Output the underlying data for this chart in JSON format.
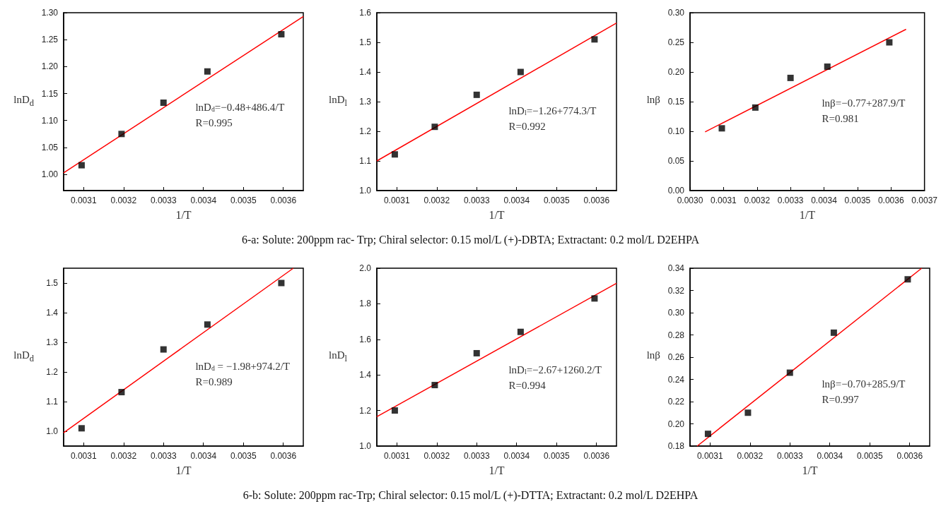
{
  "chart_data": [
    {
      "type": "scatter",
      "xlabel": "1/T",
      "ylabel": "lnD$_{d}$",
      "marker": "square",
      "x": [
        0.003095,
        0.003195,
        0.0033,
        0.00341,
        0.003595
      ],
      "xlim": [
        0.00305,
        0.00365
      ],
      "xticks": [
        0.0031,
        0.0032,
        0.0033,
        0.0034,
        0.0035,
        0.0036
      ],
      "ylim": [
        0.97,
        1.3
      ],
      "yticks": [
        {
          "value": 1.0,
          "label": "1.00"
        },
        1.05,
        {
          "value": 1.1,
          "label": "1.10"
        },
        1.15,
        {
          "value": 1.2,
          "label": "1.20"
        },
        1.25,
        {
          "value": 1.3,
          "label": "1.30"
        }
      ],
      "series": [
        {
          "type": "scatter",
          "color": "#000000",
          "values": [
            1.017,
            1.075,
            1.133,
            1.191,
            1.26
          ]
        },
        {
          "type": "line",
          "marker": "none",
          "color": "#ff0000",
          "x": [
            0.00305,
            0.00365
          ],
          "values": [
            1.003,
            1.293
          ]
        }
      ],
      "annotations": [
        "lnD$_{d}$=−0.48+486.4/T",
        "R=0.995"
      ]
    },
    {
      "type": "scatter",
      "xlabel": "1/T",
      "ylabel": "lnD$_{l}$",
      "marker": "square",
      "x": [
        0.003095,
        0.003195,
        0.0033,
        0.00341,
        0.003595
      ],
      "xlim": [
        0.00305,
        0.00365
      ],
      "xticks": [
        0.0031,
        0.0032,
        0.0033,
        0.0034,
        0.0035,
        0.0036
      ],
      "ylim": [
        1.0,
        1.6
      ],
      "yticks": [
        {
          "value": 1.0,
          "label": "1.0"
        },
        1.1,
        1.2,
        1.3,
        1.4,
        1.5,
        1.6
      ],
      "series": [
        {
          "type": "scatter",
          "color": "#000000",
          "values": [
            1.122,
            1.215,
            1.323,
            1.4,
            1.51
          ]
        },
        {
          "type": "line",
          "marker": "none",
          "color": "#ff0000",
          "x": [
            0.00305,
            0.00365
          ],
          "values": [
            1.1,
            1.565
          ]
        }
      ],
      "annotations": [
        "lnD$_{l}$=−1.26+774.3/T",
        "R=0.992",
        "6-a: Solute: 200ppm rac- Trp; Chiral selector: 0.15 mol/L (+)-DBTA; Extractant: 0.2 mol/L D2EHPA"
      ]
    },
    {
      "type": "scatter",
      "xlabel": "1/T",
      "ylabel": "lnβ",
      "marker": "square",
      "x": [
        0.003095,
        0.003195,
        0.0033,
        0.00341,
        0.003595
      ],
      "xlim": [
        0.003,
        0.0037
      ],
      "xticks": [
        {
          "value": 0.003,
          "label": "0.0030"
        },
        0.0031,
        0.0032,
        0.0033,
        0.0034,
        0.0035,
        0.0036,
        0.0037
      ],
      "ylim": [
        0,
        0.3
      ],
      "yticks": [
        {
          "value": 0,
          "label": "0.00"
        },
        0.05,
        {
          "value": 0.1,
          "label": "0.10"
        },
        0.15,
        {
          "value": 0.2,
          "label": "0.20"
        },
        0.25,
        {
          "value": 0.3,
          "label": "0.30"
        }
      ],
      "series": [
        {
          "type": "scatter",
          "color": "#000000",
          "values": [
            0.105,
            0.14,
            0.19,
            0.209,
            0.25
          ]
        },
        {
          "type": "line",
          "marker": "none",
          "color": "#ff0000",
          "x": [
            0.003045,
            0.003645
          ],
          "values": [
            0.099,
            0.272
          ]
        }
      ],
      "annotations": [
        "lnβ=−0.77+287.9/T",
        "R=0.981"
      ]
    },
    {
      "type": "scatter",
      "xlabel": "1/T",
      "ylabel": "lnD$_{d}$",
      "marker": "square",
      "x": [
        0.003095,
        0.003195,
        0.0033,
        0.00341,
        0.003595
      ],
      "xlim": [
        0.00305,
        0.00365
      ],
      "xticks": [
        0.0031,
        0.0032,
        0.0033,
        0.0034,
        0.0035,
        0.0036
      ],
      "ylim": [
        0.95,
        1.55
      ],
      "yticks": [
        {
          "value": 1.0,
          "label": "1.0"
        },
        1.1,
        1.2,
        1.3,
        1.4,
        1.5
      ],
      "series": [
        {
          "type": "scatter",
          "color": "#000000",
          "values": [
            1.01,
            1.132,
            1.276,
            1.36,
            1.5
          ]
        },
        {
          "type": "line",
          "marker": "none",
          "color": "#ff0000",
          "x": [
            0.00305,
            0.003625
          ],
          "values": [
            0.995,
            1.55
          ]
        }
      ],
      "annotations": [
        "lnD$_{d}$ = −1.98+974.2/T",
        "R=0.989"
      ]
    },
    {
      "type": "scatter",
      "xlabel": "1/T",
      "ylabel": "lnD$_{l}$",
      "marker": "square",
      "x": [
        0.003095,
        0.003195,
        0.0033,
        0.00341,
        0.003595
      ],
      "xlim": [
        0.00305,
        0.00365
      ],
      "xticks": [
        0.0031,
        0.0032,
        0.0033,
        0.0034,
        0.0035,
        0.0036
      ],
      "ylim": [
        1.0,
        2.0
      ],
      "yticks": [
        {
          "value": 1.0,
          "label": "1.0"
        },
        1.2,
        1.4,
        1.6,
        1.8,
        {
          "value": 2.0,
          "label": "2.0"
        }
      ],
      "series": [
        {
          "type": "scatter",
          "color": "#000000",
          "values": [
            1.2,
            1.343,
            1.522,
            1.642,
            1.83
          ]
        },
        {
          "type": "line",
          "marker": "none",
          "color": "#ff0000",
          "x": [
            0.00305,
            0.00365
          ],
          "values": [
            1.165,
            1.915
          ]
        }
      ],
      "annotations": [
        "lnD$_{l}$=−2.67+1260.2/T",
        "R=0.994",
        "6-b: Solute: 200ppm rac-Trp; Chiral selector: 0.15 mol/L (+)-DTTA; Extractant: 0.2 mol/L D2EHPA"
      ]
    },
    {
      "type": "scatter",
      "xlabel": "1/T",
      "ylabel": "lnβ",
      "marker": "square",
      "x": [
        0.003095,
        0.003195,
        0.0033,
        0.00341,
        0.003595
      ],
      "xlim": [
        0.00305,
        0.00365
      ],
      "xticks": [
        0.0031,
        0.0032,
        0.0033,
        0.0034,
        0.0035,
        0.0036
      ],
      "ylim": [
        0.18,
        0.34
      ],
      "yticks": [
        0.18,
        {
          "value": 0.2,
          "label": "0.20"
        },
        0.22,
        0.24,
        0.26,
        0.28,
        {
          "value": 0.3,
          "label": "0.30"
        },
        0.32,
        0.34
      ],
      "series": [
        {
          "type": "scatter",
          "color": "#000000",
          "values": [
            0.191,
            0.21,
            0.246,
            0.282,
            0.33
          ]
        },
        {
          "type": "line",
          "marker": "none",
          "color": "#ff0000",
          "x": [
            0.003068,
            0.00363
          ],
          "values": [
            0.18,
            0.34
          ]
        }
      ],
      "annotations": [
        "lnβ=−0.70+285.9/T",
        "R=0.997"
      ]
    }
  ]
}
